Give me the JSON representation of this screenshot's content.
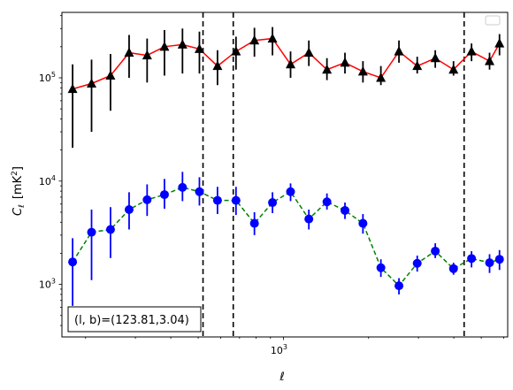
{
  "chart_data": {
    "type": "scatter",
    "xlabel": "ℓ",
    "ylabel_main": "C",
    "ylabel_sub": "ℓ",
    "ylabel_unit": "[mK",
    "ylabel_unit_sup": "2",
    "ylabel_unit_close": "]",
    "x_scale": "log",
    "y_scale": "log",
    "xlim": [
      165,
      6200
    ],
    "ylim": [
      310,
      430000
    ],
    "x_tick_labels": [
      {
        "value": 1000,
        "base": "10",
        "exp": "3"
      }
    ],
    "y_tick_labels": [
      {
        "value": 1000,
        "base": "10",
        "exp": "3"
      },
      {
        "value": 10000,
        "base": "10",
        "exp": "4"
      },
      {
        "value": 100000,
        "base": "10",
        "exp": "5"
      }
    ],
    "vlines": [
      520,
      665,
      4350
    ],
    "annotation": "(l, b)=(123.81,3.04)",
    "legend": "top-right, empty",
    "series": [
      {
        "marker": "triangle",
        "marker_color": "#000000",
        "line_color": "#ff0000",
        "line_style": "solid",
        "errorbar_color": "#000000",
        "x": [
          180,
          210,
          245,
          285,
          330,
          380,
          440,
          505,
          585,
          680,
          790,
          915,
          1060,
          1230,
          1425,
          1650,
          1910,
          2210,
          2560,
          2970,
          3440,
          3990,
          4620,
          5350
        ],
        "y": [
          78000,
          88000,
          105000,
          175000,
          165000,
          200000,
          210000,
          190000,
          130000,
          180000,
          230000,
          240000,
          135000,
          175000,
          120000,
          140000,
          115000,
          100000,
          180000,
          130000,
          155000,
          120000,
          180000,
          145000
        ],
        "y_low": [
          21000,
          30000,
          48000,
          100000,
          90000,
          105000,
          110000,
          110000,
          85000,
          120000,
          160000,
          165000,
          100000,
          130000,
          95000,
          110000,
          90000,
          85000,
          140000,
          110000,
          125000,
          105000,
          145000,
          120000
        ],
        "y_high": [
          135000,
          150000,
          170000,
          260000,
          240000,
          290000,
          300000,
          280000,
          185000,
          250000,
          305000,
          310000,
          180000,
          230000,
          155000,
          175000,
          145000,
          130000,
          230000,
          160000,
          185000,
          145000,
          215000,
          175000
        ]
      },
      {
        "marker": "circle",
        "marker_color": "#0000ff",
        "line_color": "#008000",
        "line_style": "dashed",
        "errorbar_color": "#0000ff",
        "x": [
          180,
          210,
          245,
          285,
          330,
          380,
          440,
          505,
          585,
          680,
          790,
          915,
          1060,
          1230,
          1425,
          1650,
          1910,
          2210,
          2560,
          2970,
          3440,
          3990,
          4620,
          5350
        ],
        "y": [
          1650,
          3200,
          3400,
          5300,
          6600,
          7400,
          8700,
          7900,
          6500,
          6500,
          3900,
          6200,
          7900,
          4300,
          6300,
          5200,
          3900,
          1450,
          970,
          1600,
          2100,
          1420,
          1780,
          1620
        ],
        "y_low": [
          620,
          1100,
          1800,
          3400,
          4600,
          5400,
          6400,
          5800,
          4800,
          4700,
          3000,
          4900,
          6400,
          3400,
          5300,
          4300,
          3100,
          1180,
          800,
          1330,
          1800,
          1240,
          1460,
          1290
        ],
        "y_high": [
          2800,
          5300,
          5600,
          7800,
          9300,
          10500,
          12300,
          10900,
          8800,
          8800,
          5000,
          7800,
          9500,
          5300,
          7600,
          6200,
          4800,
          1750,
          1150,
          1900,
          2500,
          1620,
          2100,
          1960
        ]
      }
    ],
    "x_last_dot": 5800,
    "y_last_dot": 1750,
    "y_last_low": 1380,
    "y_last_high": 2150,
    "x_last_tri": 5800,
    "y_last_tri": 215000,
    "y_last_tri_low": 165000,
    "y_last_tri_high": 265000
  }
}
